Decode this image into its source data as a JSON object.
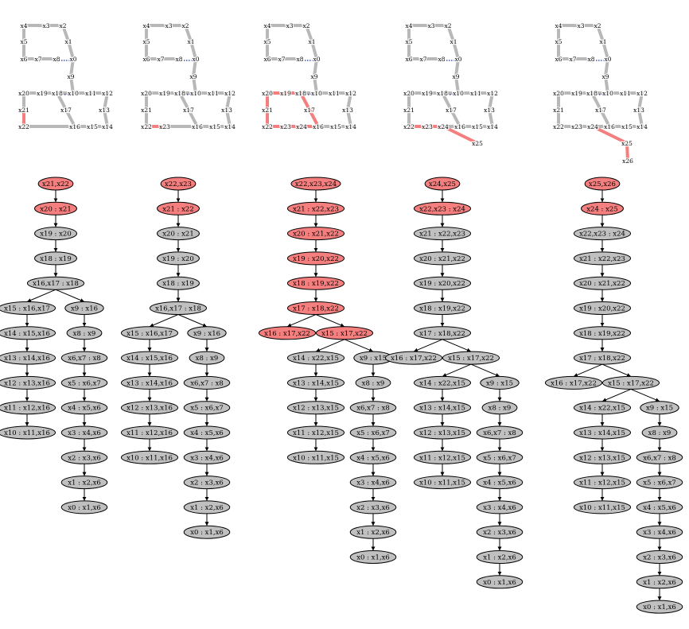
{
  "colors": {
    "highlight": "#f57f7f",
    "highlight_stroke": "#cc0000",
    "node_fill": "#c0c0c0",
    "track": "#b8b8b8",
    "dotted": "#2233aa",
    "edge": "#000000"
  },
  "panels": [
    {
      "graph_labels": [
        "x4",
        "x3",
        "x2",
        "x5",
        "x1",
        "x6",
        "x7",
        "x8",
        "x0",
        "x9",
        "x20",
        "x19",
        "x18",
        "x10",
        "x11",
        "x12",
        "x21",
        "x17",
        "x13",
        "x22",
        "x16",
        "x15",
        "x14"
      ],
      "red_path": [
        "x21",
        "x22"
      ],
      "tree": [
        {
          "label": "x21,x22",
          "red": true
        },
        {
          "label": "x20 : x21",
          "red": true,
          "parent": 0
        },
        {
          "label": "x19 : x20",
          "parent": 1
        },
        {
          "label": "x18 : x19",
          "parent": 2
        },
        {
          "label": "x16,x17 : x18",
          "parent": 3
        },
        {
          "label": "x15 : x16,x17",
          "parent": 4
        },
        {
          "label": "x14 : x15,x16",
          "parent": 5
        },
        {
          "label": "x13 : x14,x16",
          "parent": 6
        },
        {
          "label": "x12 : x13,x16",
          "parent": 7
        },
        {
          "label": "x11 : x12,x16",
          "parent": 8
        },
        {
          "label": "x10 : x11,x16",
          "parent": 9
        },
        {
          "label": "x9 : x16",
          "parent": 4
        },
        {
          "label": "x8 : x9",
          "parent": 11
        },
        {
          "label": "x6,x7 : x8",
          "parent": 12
        },
        {
          "label": "x5 : x6,x7",
          "parent": 13
        },
        {
          "label": "x4 : x5,x6",
          "parent": 14
        },
        {
          "label": "x3 : x4,x6",
          "parent": 15
        },
        {
          "label": "x2 : x3,x6",
          "parent": 16
        },
        {
          "label": "x1 : x2,x6",
          "parent": 17
        },
        {
          "label": "x0 : x1,x6",
          "parent": 18
        }
      ]
    },
    {
      "graph_labels": [
        "x4",
        "x3",
        "x2",
        "x5",
        "x1",
        "x6",
        "x7",
        "x8",
        "x0",
        "x9",
        "x20",
        "x19",
        "x18",
        "x10",
        "x11",
        "x12",
        "x21",
        "x17",
        "x13",
        "x22",
        "x23",
        "x16",
        "x15",
        "x14"
      ],
      "red_path": [
        "x22",
        "x23"
      ],
      "tree": [
        {
          "label": "x22,x23",
          "red": true
        },
        {
          "label": "x21 : x22",
          "red": true,
          "parent": 0
        },
        {
          "label": "x20 : x21",
          "parent": 1
        },
        {
          "label": "x19 : x20",
          "parent": 2
        },
        {
          "label": "x18 : x19",
          "parent": 3
        },
        {
          "label": "x16,x17 : x18",
          "parent": 4
        },
        {
          "label": "x15 : x16,x17",
          "parent": 5
        },
        {
          "label": "x14 : x15,x16",
          "parent": 6
        },
        {
          "label": "x13 : x14,x16",
          "parent": 7
        },
        {
          "label": "x12 : x13,x16",
          "parent": 8
        },
        {
          "label": "x11 : x12,x16",
          "parent": 9
        },
        {
          "label": "x10 : x11,x16",
          "parent": 10
        },
        {
          "label": "x9 : x16",
          "parent": 5
        },
        {
          "label": "x8 : x9",
          "parent": 12
        },
        {
          "label": "x6,x7 : x8",
          "parent": 13
        },
        {
          "label": "x5 : x6,x7",
          "parent": 14
        },
        {
          "label": "x4 : x5,x6",
          "parent": 15
        },
        {
          "label": "x3 : x4,x6",
          "parent": 16
        },
        {
          "label": "x2 : x3,x6",
          "parent": 17
        },
        {
          "label": "x1 : x2,x6",
          "parent": 18
        },
        {
          "label": "x0 : x1,x6",
          "parent": 19
        }
      ]
    },
    {
      "graph_labels": [
        "x4",
        "x3",
        "x2",
        "x5",
        "x1",
        "x6",
        "x7",
        "x8",
        "x0",
        "x9",
        "x20",
        "x19",
        "x18",
        "x10",
        "x11",
        "x12",
        "x21",
        "x17",
        "x13",
        "x22",
        "x23",
        "x24",
        "x16",
        "x15",
        "x14"
      ],
      "red_path": [
        "x17",
        "x20",
        "x22",
        "x16"
      ],
      "tree": [
        {
          "label": "x22,x23,x24",
          "red": true
        },
        {
          "label": "x21 : x22,x23",
          "red": true,
          "parent": 0
        },
        {
          "label": "x20 : x21,x22",
          "red": true,
          "parent": 1
        },
        {
          "label": "x19 : x20,x22",
          "red": true,
          "parent": 2
        },
        {
          "label": "x18 : x19,x22",
          "red": true,
          "parent": 3
        },
        {
          "label": "x17 : x18,x22",
          "red": true,
          "parent": 4
        },
        {
          "label": "x16 : x17,x22",
          "red": true,
          "parent": 5
        },
        {
          "label": "x15 : x17,x22",
          "red": true,
          "parent": 5
        },
        {
          "label": "x14 : x22,x15",
          "parent": 7
        },
        {
          "label": "x13 : x14,x15",
          "parent": 8
        },
        {
          "label": "x12 : x13,x15",
          "parent": 9
        },
        {
          "label": "x11 : x12,x15",
          "parent": 10
        },
        {
          "label": "x10 : x11,x15",
          "parent": 11
        },
        {
          "label": "x9 : x15",
          "parent": 7
        },
        {
          "label": "x8 : x9",
          "parent": 13
        },
        {
          "label": "x6,x7 : x8",
          "parent": 14
        },
        {
          "label": "x5 : x6,x7",
          "parent": 15
        },
        {
          "label": "x4 : x5,x6",
          "parent": 16
        },
        {
          "label": "x3 : x4,x6",
          "parent": 17
        },
        {
          "label": "x2 : x3,x6",
          "parent": 18
        },
        {
          "label": "x1 : x2,x6",
          "parent": 19
        },
        {
          "label": "x0 : x1,x6",
          "parent": 20
        }
      ]
    },
    {
      "graph_labels": [
        "x4",
        "x3",
        "x2",
        "x5",
        "x1",
        "x6",
        "x7",
        "x8",
        "x0",
        "x9",
        "x20",
        "x19",
        "x18",
        "x10",
        "x11",
        "x12",
        "x21",
        "x17",
        "x13",
        "x22",
        "x23",
        "x24",
        "x16",
        "x15",
        "x14",
        "x25"
      ],
      "red_path": [
        "x22",
        "x24",
        "x25"
      ],
      "tree": [
        {
          "label": "x24,x25",
          "red": true
        },
        {
          "label": "x22,x23 : x24",
          "red": true,
          "parent": 0
        },
        {
          "label": "x21 : x22,x23",
          "parent": 1
        },
        {
          "label": "x20 : x21,x22",
          "parent": 2
        },
        {
          "label": "x19 : x20,x22",
          "parent": 3
        },
        {
          "label": "x18 : x19,x22",
          "parent": 4
        },
        {
          "label": "x17 : x18,x22",
          "parent": 5
        },
        {
          "label": "x16 : x17,x22",
          "parent": 6
        },
        {
          "label": "x15 : x17,x22",
          "parent": 6
        },
        {
          "label": "x14 : x22,x15",
          "parent": 8
        },
        {
          "label": "x13 : x14,x15",
          "parent": 9
        },
        {
          "label": "x12 : x13,x15",
          "parent": 10
        },
        {
          "label": "x11 : x12,x15",
          "parent": 11
        },
        {
          "label": "x10 : x11,x15",
          "parent": 12
        },
        {
          "label": "x9 : x15",
          "parent": 8
        },
        {
          "label": "x8 : x9",
          "parent": 14
        },
        {
          "label": "x6,x7 : x8",
          "parent": 15
        },
        {
          "label": "x5 : x6,x7",
          "parent": 16
        },
        {
          "label": "x4 : x5,x6",
          "parent": 17
        },
        {
          "label": "x3 : x4,x6",
          "parent": 18
        },
        {
          "label": "x2 : x3,x6",
          "parent": 19
        },
        {
          "label": "x1 : x2,x6",
          "parent": 20
        },
        {
          "label": "x0 : x1,x6",
          "parent": 21
        }
      ]
    },
    {
      "graph_labels": [
        "x4",
        "x3",
        "x2",
        "x5",
        "x1",
        "x6",
        "x7",
        "x8",
        "x0",
        "x9",
        "x20",
        "x19",
        "x18",
        "x10",
        "x11",
        "x12",
        "x21",
        "x17",
        "x13",
        "x22",
        "x23",
        "x24",
        "x16",
        "x15",
        "x14",
        "x25",
        "x26"
      ],
      "red_path": [
        "x24",
        "x25",
        "x26"
      ],
      "tree": [
        {
          "label": "x25,x26",
          "red": true
        },
        {
          "label": "x24 : x25",
          "red": true,
          "parent": 0
        },
        {
          "label": "x22,x23 : x24",
          "parent": 1
        },
        {
          "label": "x21 : x22,x23",
          "parent": 2
        },
        {
          "label": "x20 : x21,x22",
          "parent": 3
        },
        {
          "label": "x19 : x20,x22",
          "parent": 4
        },
        {
          "label": "x18 : x19,x22",
          "parent": 5
        },
        {
          "label": "x17 : x18,x22",
          "parent": 6
        },
        {
          "label": "x16 : x17,x22",
          "parent": 7
        },
        {
          "label": "x15 : x17,x22",
          "parent": 7
        },
        {
          "label": "x14 : x22,x15",
          "parent": 9
        },
        {
          "label": "x13 : x14,x15",
          "parent": 10
        },
        {
          "label": "x12 : x13,x15",
          "parent": 11
        },
        {
          "label": "x11 : x12,x15",
          "parent": 12
        },
        {
          "label": "x10 : x11,x15",
          "parent": 13
        },
        {
          "label": "x9 : x15",
          "parent": 9
        },
        {
          "label": "x8 : x9",
          "parent": 15
        },
        {
          "label": "x6,x7 : x8",
          "parent": 16
        },
        {
          "label": "x5 : x6,x7",
          "parent": 17
        },
        {
          "label": "x4 : x5,x6",
          "parent": 18
        },
        {
          "label": "x3 : x4,x6",
          "parent": 19
        },
        {
          "label": "x2 : x3,x6",
          "parent": 20
        },
        {
          "label": "x1 : x2,x6",
          "parent": 21
        },
        {
          "label": "x0 : x1,x6",
          "parent": 22
        }
      ]
    }
  ]
}
